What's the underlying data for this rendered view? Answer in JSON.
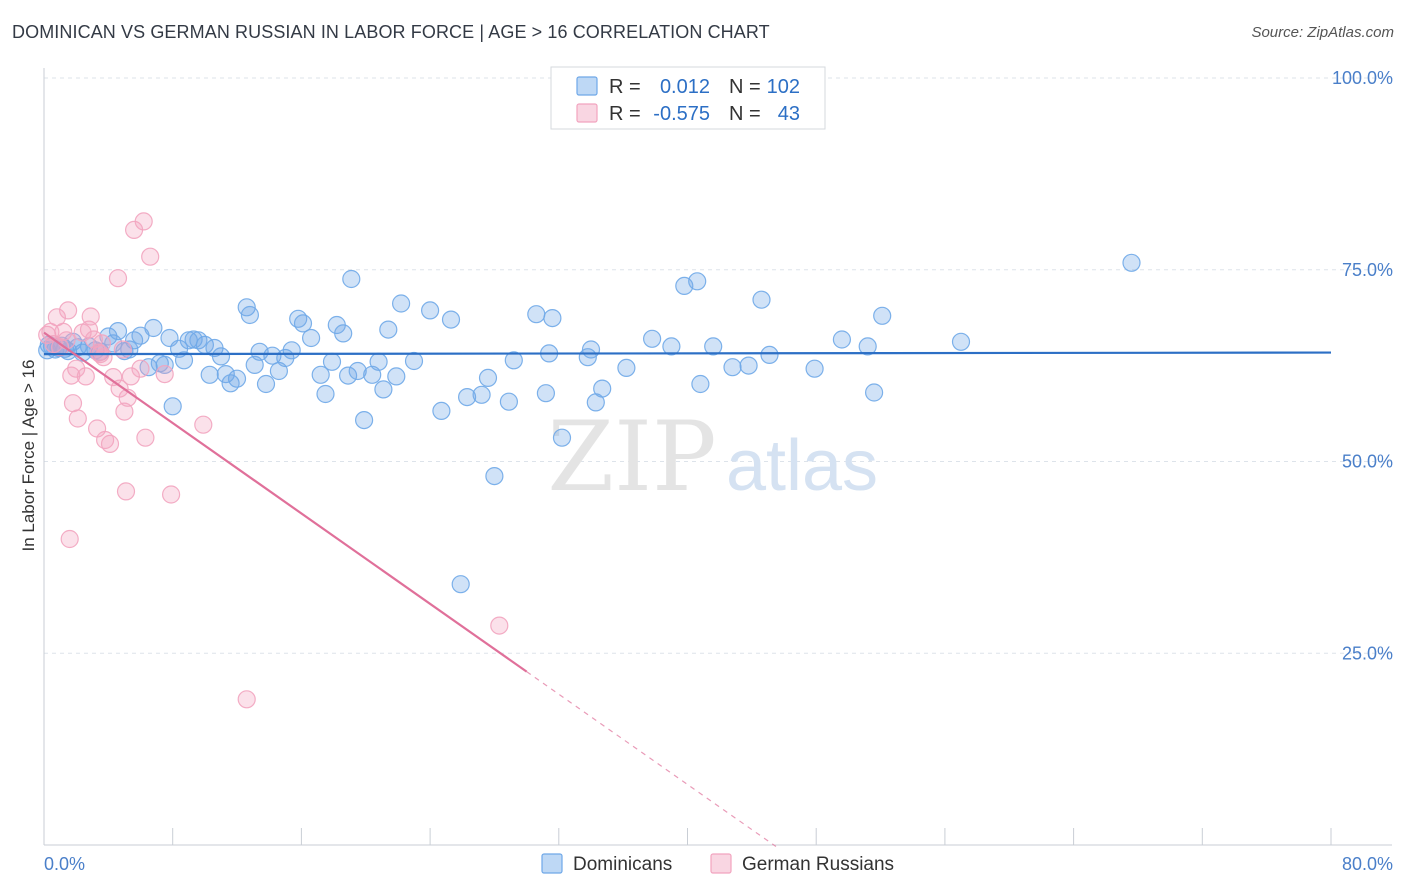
{
  "title": "DOMINICAN VS GERMAN RUSSIAN IN LABOR FORCE | AGE > 16 CORRELATION CHART",
  "source": "Source: ZipAtlas.com",
  "watermark": {
    "zip": "ZIP",
    "atlas": "atlas"
  },
  "colors": {
    "blue": "#6fa8e8",
    "blue_line": "#2c6fc5",
    "pink": "#f2a4bf",
    "pink_line": "#e0709a",
    "tick_text": "#4a7fc9",
    "grid": "#dde3ea"
  },
  "legend": {
    "rows": [
      {
        "r_label": "R =",
        "r_value": "0.012",
        "n_label": "N =",
        "n_value": "102",
        "color": "blue"
      },
      {
        "r_label": "R =",
        "r_value": "-0.575",
        "n_label": "N =",
        "n_value": "43",
        "color": "pink"
      }
    ]
  },
  "chart_data": {
    "type": "scatter",
    "title": "DOMINICAN VS GERMAN RUSSIAN IN LABOR FORCE | AGE > 16 CORRELATION CHART",
    "xlabel": "",
    "ylabel": "In Labor Force | Age > 16",
    "xlim": [
      0,
      80
    ],
    "ylim": [
      0,
      100
    ],
    "x_tick_labels": [
      "0.0%",
      "80.0%"
    ],
    "y_tick_labels": [
      "100.0%",
      "75.0%",
      "50.0%",
      "25.0%"
    ],
    "y_ticks": [
      100,
      75,
      50,
      25
    ],
    "grid": true,
    "series": [
      {
        "name": "Dominicans",
        "color": "blue",
        "trend": {
          "x0": 0,
          "y0": 64.0,
          "x1": 80,
          "y1": 64.2,
          "dashed_to": null
        },
        "points": [
          [
            0.2,
            64.5
          ],
          [
            0.3,
            65.2
          ],
          [
            0.5,
            65.0
          ],
          [
            0.7,
            64.6
          ],
          [
            0.9,
            64.8
          ],
          [
            1.1,
            65.1
          ],
          [
            1.3,
            64.7
          ],
          [
            1.5,
            64.4
          ],
          [
            1.8,
            65.6
          ],
          [
            2.1,
            64.9
          ],
          [
            2.4,
            64.2
          ],
          [
            2.8,
            65.0
          ],
          [
            3.2,
            64.5
          ],
          [
            3.5,
            64.3
          ],
          [
            4.0,
            66.3
          ],
          [
            4.3,
            65.4
          ],
          [
            4.6,
            67.0
          ],
          [
            5.0,
            64.4
          ],
          [
            5.3,
            64.6
          ],
          [
            5.6,
            65.8
          ],
          [
            6.0,
            66.4
          ],
          [
            6.5,
            62.3
          ],
          [
            6.8,
            67.4
          ],
          [
            7.2,
            62.8
          ],
          [
            7.5,
            62.6
          ],
          [
            7.8,
            66.1
          ],
          [
            8.0,
            57.2
          ],
          [
            8.4,
            64.7
          ],
          [
            8.7,
            63.2
          ],
          [
            9.0,
            65.8
          ],
          [
            9.3,
            65.9
          ],
          [
            9.6,
            65.8
          ],
          [
            10.0,
            65.2
          ],
          [
            10.3,
            61.3
          ],
          [
            10.6,
            64.8
          ],
          [
            11.0,
            63.7
          ],
          [
            11.3,
            61.4
          ],
          [
            11.6,
            60.2
          ],
          [
            12.0,
            60.8
          ],
          [
            12.6,
            70.1
          ],
          [
            12.8,
            69.1
          ],
          [
            13.1,
            62.6
          ],
          [
            13.4,
            64.3
          ],
          [
            13.8,
            60.1
          ],
          [
            14.2,
            63.8
          ],
          [
            14.6,
            61.8
          ],
          [
            15.0,
            63.5
          ],
          [
            15.4,
            64.5
          ],
          [
            15.8,
            68.6
          ],
          [
            16.1,
            68.0
          ],
          [
            16.6,
            66.1
          ],
          [
            17.2,
            61.3
          ],
          [
            17.5,
            58.8
          ],
          [
            17.9,
            63.0
          ],
          [
            18.2,
            67.8
          ],
          [
            18.6,
            66.7
          ],
          [
            18.9,
            61.2
          ],
          [
            19.1,
            73.8
          ],
          [
            19.5,
            61.8
          ],
          [
            19.9,
            55.4
          ],
          [
            20.4,
            61.3
          ],
          [
            20.8,
            63.0
          ],
          [
            21.1,
            59.4
          ],
          [
            21.4,
            67.2
          ],
          [
            21.9,
            61.1
          ],
          [
            22.2,
            70.6
          ],
          [
            23.0,
            63.1
          ],
          [
            24.0,
            69.7
          ],
          [
            24.7,
            56.6
          ],
          [
            25.3,
            68.5
          ],
          [
            26.3,
            58.4
          ],
          [
            27.2,
            58.7
          ],
          [
            27.6,
            60.9
          ],
          [
            28.0,
            48.1
          ],
          [
            28.9,
            57.8
          ],
          [
            29.2,
            63.2
          ],
          [
            30.6,
            69.2
          ],
          [
            31.2,
            58.9
          ],
          [
            31.4,
            64.1
          ],
          [
            31.6,
            68.7
          ],
          [
            32.2,
            53.1
          ],
          [
            33.8,
            63.6
          ],
          [
            34.0,
            64.6
          ],
          [
            34.3,
            57.7
          ],
          [
            34.7,
            59.5
          ],
          [
            25.9,
            34.0
          ],
          [
            36.2,
            62.2
          ],
          [
            37.8,
            66.0
          ],
          [
            39.0,
            65.0
          ],
          [
            39.8,
            72.9
          ],
          [
            40.6,
            73.5
          ],
          [
            40.8,
            60.1
          ],
          [
            41.6,
            65.0
          ],
          [
            42.8,
            62.3
          ],
          [
            43.8,
            62.5
          ],
          [
            44.6,
            71.1
          ],
          [
            45.1,
            63.9
          ],
          [
            47.9,
            62.1
          ],
          [
            49.6,
            65.9
          ],
          [
            51.2,
            65.0
          ],
          [
            51.6,
            59.0
          ],
          [
            52.1,
            69.0
          ],
          [
            57.0,
            65.6
          ],
          [
            67.6,
            75.9
          ]
        ]
      },
      {
        "name": "German Russians",
        "color": "pink",
        "trend": {
          "x0": 0,
          "y0": 66.8,
          "x1": 30,
          "y1": 22.6,
          "dashed_to": {
            "x": 45.5,
            "y": -0.2
          }
        },
        "points": [
          [
            0.2,
            66.5
          ],
          [
            0.4,
            66.9
          ],
          [
            0.6,
            65.3
          ],
          [
            0.8,
            68.8
          ],
          [
            1.0,
            64.9
          ],
          [
            1.2,
            66.9
          ],
          [
            1.4,
            65.8
          ],
          [
            1.5,
            69.7
          ],
          [
            1.6,
            39.9
          ],
          [
            1.7,
            61.2
          ],
          [
            1.8,
            57.6
          ],
          [
            2.0,
            62.1
          ],
          [
            2.1,
            55.6
          ],
          [
            2.4,
            66.8
          ],
          [
            2.6,
            61.1
          ],
          [
            2.8,
            67.2
          ],
          [
            2.9,
            68.9
          ],
          [
            3.1,
            65.9
          ],
          [
            3.3,
            54.3
          ],
          [
            3.5,
            64.0
          ],
          [
            3.6,
            65.4
          ],
          [
            3.7,
            63.6
          ],
          [
            3.8,
            52.8
          ],
          [
            4.1,
            52.3
          ],
          [
            4.3,
            61.0
          ],
          [
            4.6,
            73.9
          ],
          [
            4.7,
            59.5
          ],
          [
            4.9,
            64.6
          ],
          [
            5.0,
            56.5
          ],
          [
            5.1,
            46.1
          ],
          [
            5.2,
            58.3
          ],
          [
            5.4,
            61.1
          ],
          [
            5.6,
            80.2
          ],
          [
            6.0,
            62.1
          ],
          [
            6.2,
            81.3
          ],
          [
            6.3,
            53.1
          ],
          [
            6.6,
            76.7
          ],
          [
            7.5,
            61.4
          ],
          [
            7.9,
            45.7
          ],
          [
            9.9,
            54.8
          ],
          [
            12.6,
            19.0
          ],
          [
            28.3,
            28.6
          ],
          [
            3.4,
            64.2
          ]
        ]
      }
    ]
  },
  "bottom_legend": {
    "items": [
      {
        "label": "Dominicans",
        "color": "blue"
      },
      {
        "label": "German Russians",
        "color": "pink"
      }
    ]
  }
}
